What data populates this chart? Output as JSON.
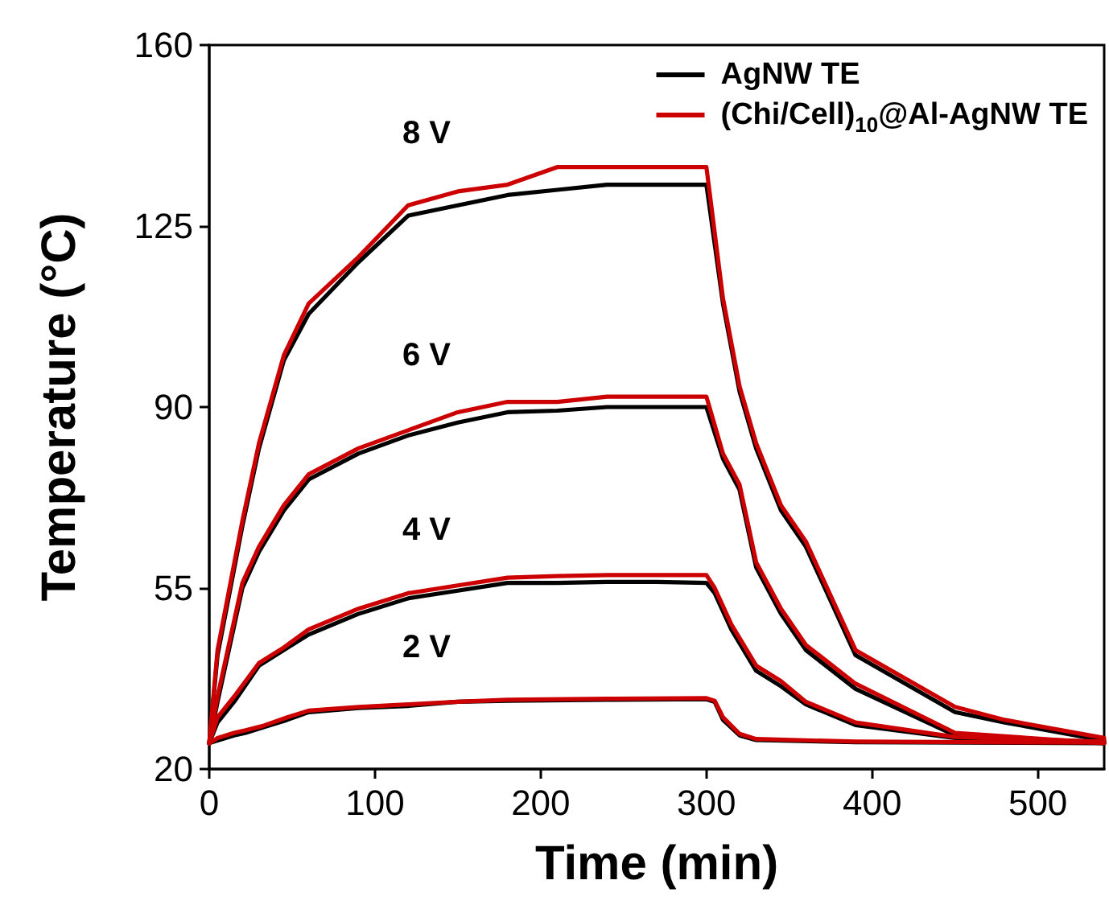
{
  "chart_data": {
    "type": "line",
    "xlabel": "Time (min)",
    "ylabel": "Temperature (°C)",
    "xlim": [
      0,
      540
    ],
    "xticks": [
      0,
      100,
      200,
      300,
      400,
      500
    ],
    "ylim": [
      20,
      160
    ],
    "yticks": [
      20,
      55,
      90,
      125,
      160
    ],
    "grid": false,
    "legend": "top right",
    "marker": "none",
    "line_style": "solid",
    "annotations": [
      "8 V",
      "6 V",
      "4 V",
      "2 V"
    ],
    "series": [
      {
        "name": "AgNW TE",
        "color": "#000000",
        "x": [
          0,
          5,
          20,
          30,
          45,
          60,
          90,
          120,
          150,
          180,
          210,
          240,
          270,
          300,
          310,
          320,
          330,
          345,
          360,
          390,
          450,
          480,
          540
        ],
        "values": [
          25,
          42,
          67,
          82,
          99,
          108,
          118,
          127,
          129,
          131,
          132,
          133,
          133,
          133,
          110,
          93,
          82,
          70,
          63,
          42,
          31,
          29,
          25.5
        ]
      },
      {
        "color": "#000000",
        "x": [
          0,
          5,
          20,
          30,
          45,
          60,
          90,
          120,
          150,
          180,
          210,
          240,
          270,
          300,
          310,
          320,
          330,
          345,
          360,
          390,
          450,
          540
        ],
        "values": [
          25,
          33,
          55,
          62,
          70,
          76,
          81,
          84.5,
          87,
          89,
          89.3,
          90,
          90,
          90,
          80,
          74,
          59,
          50,
          43,
          35.5,
          26.5,
          25
        ]
      },
      {
        "color": "#000000",
        "x": [
          0,
          5,
          15,
          30,
          45,
          60,
          90,
          120,
          150,
          180,
          210,
          240,
          270,
          300,
          305,
          315,
          330,
          345,
          360,
          390,
          450,
          540
        ],
        "values": [
          25,
          29,
          33,
          40,
          43,
          46,
          50,
          53,
          54.5,
          56,
          56,
          56.2,
          56.2,
          56,
          54,
          47,
          39,
          36,
          32.5,
          28.5,
          26,
          25.2
        ]
      },
      {
        "color": "#000000",
        "x": [
          0,
          5,
          15,
          22,
          32,
          47,
          60,
          90,
          120,
          150,
          180,
          240,
          300,
          305,
          310,
          320,
          330,
          390,
          540
        ],
        "values": [
          25,
          25.5,
          26.5,
          27,
          28,
          29.5,
          31,
          31.8,
          32.2,
          33,
          33.2,
          33.4,
          33.5,
          33,
          29.5,
          26.5,
          25.6,
          25.2,
          25
        ]
      },
      {
        "name": "(Chi/Cell)$_{10}$@Al-AgNW TE",
        "color": "#cc0000",
        "x": [
          0,
          5,
          20,
          30,
          45,
          60,
          90,
          120,
          150,
          180,
          210,
          240,
          270,
          300,
          310,
          320,
          330,
          345,
          360,
          390,
          450,
          480,
          540
        ],
        "values": [
          25,
          43,
          68,
          83,
          100,
          110,
          119,
          129,
          131.7,
          133,
          136.4,
          136.4,
          136.4,
          136.4,
          111,
          94,
          83,
          71,
          64,
          43,
          32,
          29.5,
          26
        ]
      },
      {
        "color": "#cc0000",
        "x": [
          0,
          5,
          20,
          30,
          45,
          60,
          90,
          120,
          150,
          180,
          210,
          240,
          270,
          300,
          310,
          320,
          330,
          345,
          360,
          390,
          450,
          540
        ],
        "values": [
          25,
          34,
          56,
          63,
          71,
          77,
          82,
          85.5,
          89,
          91,
          91,
          92,
          92,
          92,
          81,
          75,
          60,
          51,
          44,
          36.5,
          27,
          25
        ]
      },
      {
        "color": "#cc0000",
        "x": [
          0,
          5,
          15,
          30,
          45,
          60,
          90,
          120,
          150,
          180,
          210,
          240,
          270,
          300,
          305,
          315,
          330,
          345,
          360,
          390,
          450,
          540
        ],
        "values": [
          25,
          30,
          34,
          40.5,
          43.5,
          47,
          51,
          54,
          55.5,
          57,
          57.3,
          57.5,
          57.5,
          57.5,
          55,
          48,
          40,
          37,
          33,
          29,
          26.2,
          25.3
        ]
      },
      {
        "color": "#cc0000",
        "x": [
          0,
          5,
          15,
          22,
          32,
          47,
          60,
          90,
          120,
          150,
          180,
          240,
          300,
          305,
          310,
          320,
          330,
          390,
          540
        ],
        "values": [
          25,
          26,
          27,
          27.5,
          28.3,
          30,
          31.3,
          32,
          32.5,
          33,
          33.4,
          33.6,
          33.7,
          33.2,
          30,
          26.8,
          25.8,
          25.3,
          25.1
        ]
      }
    ]
  }
}
